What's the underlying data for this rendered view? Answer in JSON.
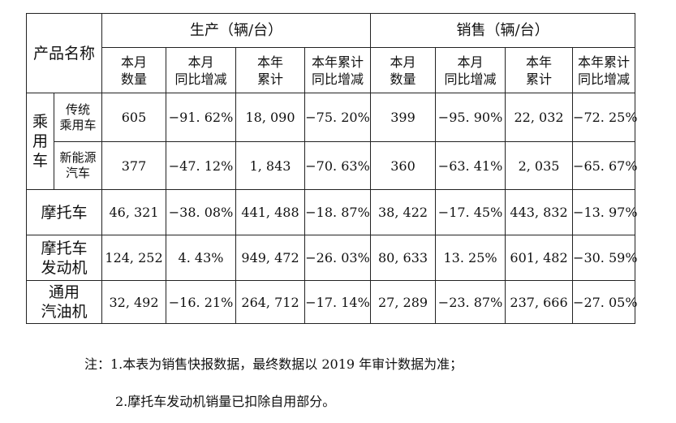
{
  "table": {
    "product_header": "产品名称",
    "production_header": "生产（辆/台）",
    "sales_header": "销售（辆/台）",
    "sub_headers": [
      [
        "本月",
        "数量"
      ],
      [
        "本月",
        "同比增减"
      ],
      [
        "本年",
        "累计"
      ],
      [
        "本年累计",
        "同比增减"
      ],
      [
        "本月",
        "数量"
      ],
      [
        "本月",
        "同比增减"
      ],
      [
        "本年",
        "累计"
      ],
      [
        "本年累计",
        "同比增减"
      ]
    ],
    "passenger_group": [
      "乘",
      "用",
      "车"
    ],
    "rows": [
      {
        "label": [
          "传统",
          "乘用车"
        ],
        "values": [
          "605",
          "−91. 62%",
          "18, 090",
          "−75. 20%",
          "399",
          "−95. 90%",
          "22, 032",
          "−72. 25%"
        ]
      },
      {
        "label": [
          "新能源",
          "汽车"
        ],
        "values": [
          "377",
          "−47. 12%",
          "1, 843",
          "−70. 63%",
          "360",
          "−63. 41%",
          "2, 035",
          "−65. 67%"
        ]
      },
      {
        "label": [
          "摩托车"
        ],
        "values": [
          "46, 321",
          "−38. 08%",
          "441, 488",
          "−18. 87%",
          "38, 422",
          "−17. 45%",
          "443, 832",
          "−13. 97%"
        ]
      },
      {
        "label": [
          "摩托车",
          "发动机"
        ],
        "values": [
          "124, 252",
          "4. 43%",
          "949, 472",
          "−26. 03%",
          "80, 633",
          "13. 25%",
          "601, 482",
          "−30. 59%"
        ]
      },
      {
        "label": [
          "通用",
          "汽油机"
        ],
        "values": [
          "32, 492",
          "−16. 21%",
          "264, 712",
          "−17. 14%",
          "27, 289",
          "−23. 87%",
          "237, 666",
          "−27. 05%"
        ]
      }
    ]
  },
  "notes": {
    "line1": "注：1.本表为销售快报数据，最终数据以 2019 年审计数据为准；",
    "line2": "2.摩托车发动机销量已扣除自用部分。"
  }
}
